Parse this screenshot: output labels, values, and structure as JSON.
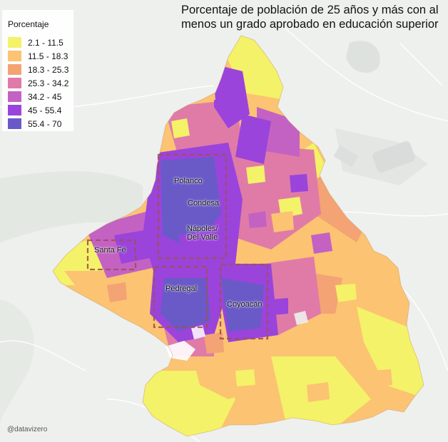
{
  "title_line1": "Porcentaje de población de 25 años y más con al",
  "title_line2": "menos un grado aprobado en educación superior",
  "legend": {
    "title": "Porcentaje",
    "items": [
      {
        "label": "2.1 - 11.5",
        "color": "#f4f268"
      },
      {
        "label": "11.5 - 18.3",
        "color": "#fbc372"
      },
      {
        "label": "18.3 - 25.3",
        "color": "#f4a374"
      },
      {
        "label": "25.3 - 34.2",
        "color": "#e07ba8"
      },
      {
        "label": "34.2 - 45",
        "color": "#c462c4"
      },
      {
        "label": "45 - 55.4",
        "color": "#9a44dc"
      },
      {
        "label": "55.4 - 70",
        "color": "#6a5ac8"
      }
    ]
  },
  "zones": {
    "polanco": "Polanco",
    "condesa": "Condesa",
    "napoles_line1": "Nápoles/",
    "napoles_line2": "Del Valle",
    "santa_fe": "Santa Fé",
    "pedregal": "Pedregal",
    "coyoacan": "Coyoacán"
  },
  "watermark": "@datavizero",
  "colors": {
    "background": "#eef0ee",
    "box_outline": "#a0505a"
  }
}
